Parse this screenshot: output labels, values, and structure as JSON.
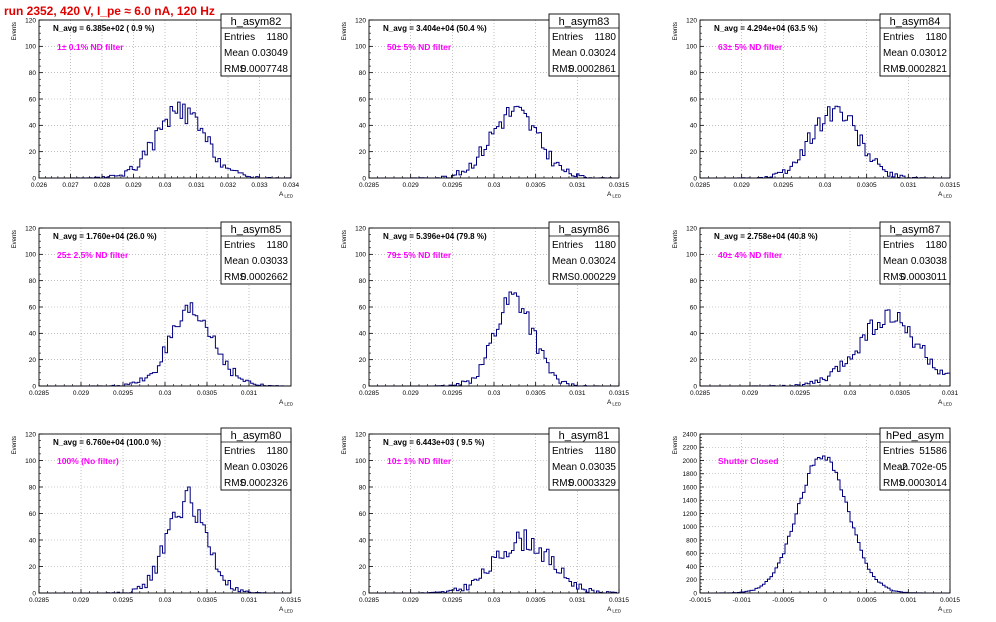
{
  "header": {
    "title": "run 2352,   420 V, I_pe ≈ 6.0 nA, 120 Hz"
  },
  "chart_data": [
    {
      "type": "histogram",
      "name": "h_asym82",
      "navg": "N_avg = 6.385e+02 ( 0.9 %)",
      "filter": "1± 0.1% ND filter",
      "stats": {
        "entries": "1180",
        "mean": "0.03049",
        "rms": "0.0007748"
      },
      "xlabel": "A_LED",
      "ylabel": "Events",
      "xlim": [
        0.026,
        0.034
      ],
      "ylim": [
        0,
        120
      ],
      "xticks": [
        "0.026",
        "0.027",
        "0.028",
        "0.029",
        "0.03",
        "0.031",
        "0.032",
        "0.033",
        "0.034"
      ],
      "yticks": [
        "0",
        "20",
        "40",
        "60",
        "80",
        "100",
        "120"
      ],
      "mu": 0.03049,
      "sigma": 0.00078,
      "peak": 50,
      "seed": 82
    },
    {
      "type": "histogram",
      "name": "h_asym83",
      "navg": "N_avg = 3.404e+04 (50.4 %)",
      "filter": "50± 5% ND filter",
      "stats": {
        "entries": "1180",
        "mean": "0.03024",
        "rms": "0.0002861"
      },
      "xlabel": "A_LED",
      "ylabel": "Events",
      "xlim": [
        0.0285,
        0.0315
      ],
      "ylim": [
        0,
        120
      ],
      "xticks": [
        "0.0285",
        "0.029",
        "0.0295",
        "0.03",
        "0.0305",
        "0.031",
        "0.0315"
      ],
      "yticks": [
        "0",
        "20",
        "40",
        "60",
        "80",
        "100",
        "120"
      ],
      "mu": 0.03024,
      "sigma": 0.00029,
      "peak": 50,
      "seed": 83
    },
    {
      "type": "histogram",
      "name": "h_asym84",
      "navg": "N_avg = 4.294e+04 (63.5 %)",
      "filter": "63± 5% ND filter",
      "stats": {
        "entries": "1180",
        "mean": "0.03012",
        "rms": "0.0002821"
      },
      "xlabel": "A_LED",
      "ylabel": "Events",
      "xlim": [
        0.0285,
        0.0315
      ],
      "ylim": [
        0,
        120
      ],
      "xticks": [
        "0.0285",
        "0.029",
        "0.0295",
        "0.03",
        "0.0305",
        "0.031",
        "0.0315"
      ],
      "yticks": [
        "0",
        "20",
        "40",
        "60",
        "80",
        "100",
        "120"
      ],
      "mu": 0.03012,
      "sigma": 0.00028,
      "peak": 52,
      "seed": 84
    },
    {
      "type": "histogram",
      "name": "h_asym85",
      "navg": "N_avg = 1.760e+04 (26.0 %)",
      "filter": "25± 2.5% ND filter",
      "stats": {
        "entries": "1180",
        "mean": "0.03033",
        "rms": "0.0002662"
      },
      "xlabel": "A_LED",
      "ylabel": "Events",
      "xlim": [
        0.0285,
        0.0315
      ],
      "ylim": [
        0,
        120
      ],
      "xticks": [
        "0.0285",
        "0.029",
        "0.0295",
        "0.03",
        "0.0305",
        "0.031"
      ],
      "yticks": [
        "0",
        "20",
        "40",
        "60",
        "80",
        "100",
        "120"
      ],
      "mu": 0.03033,
      "sigma": 0.00027,
      "peak": 54,
      "seed": 85
    },
    {
      "type": "histogram",
      "name": "h_asym86",
      "navg": "N_avg = 5.396e+04 (79.8 %)",
      "filter": "79± 5% ND filter",
      "stats": {
        "entries": "1180",
        "mean": "0.03024",
        "rms": "0.000229"
      },
      "xlabel": "A_LED",
      "ylabel": "Events",
      "xlim": [
        0.0285,
        0.0315
      ],
      "ylim": [
        0,
        120
      ],
      "xticks": [
        "0.0285",
        "0.029",
        "0.0295",
        "0.03",
        "0.0305",
        "0.031",
        "0.0315"
      ],
      "yticks": [
        "0",
        "20",
        "40",
        "60",
        "80",
        "100",
        "120"
      ],
      "mu": 0.03024,
      "sigma": 0.00023,
      "peak": 68,
      "seed": 86
    },
    {
      "type": "histogram",
      "name": "h_asym87",
      "navg": "N_avg = 2.758e+04 (40.8 %)",
      "filter": "40± 4% ND filter",
      "stats": {
        "entries": "1180",
        "mean": "0.03038",
        "rms": "0.0003011"
      },
      "xlabel": "A_LED",
      "ylabel": "Events",
      "xlim": [
        0.0285,
        0.031
      ],
      "ylim": [
        0,
        120
      ],
      "xticks": [
        "0.0285",
        "0.029",
        "0.0295",
        "0.03",
        "0.0305",
        "0.031"
      ],
      "yticks": [
        "0",
        "20",
        "40",
        "60",
        "80",
        "100",
        "120"
      ],
      "mu": 0.03038,
      "sigma": 0.0003,
      "peak": 52,
      "seed": 87
    },
    {
      "type": "histogram",
      "name": "h_asym80",
      "navg": "N_avg = 6.760e+04 (100.0 %)",
      "filter": "100% (No filter)",
      "stats": {
        "entries": "1180",
        "mean": "0.03026",
        "rms": "0.0002326"
      },
      "xlabel": "A_LED",
      "ylabel": "Events",
      "xlim": [
        0.0285,
        0.0315
      ],
      "ylim": [
        0,
        120
      ],
      "xticks": [
        "0.0285",
        "0.029",
        "0.0295",
        "0.03",
        "0.0305",
        "0.031",
        "0.0315"
      ],
      "yticks": [
        "0",
        "20",
        "40",
        "60",
        "80",
        "100",
        "120"
      ],
      "mu": 0.03026,
      "sigma": 0.00023,
      "peak": 70,
      "seed": 80
    },
    {
      "type": "histogram",
      "name": "h_asym81",
      "navg": "N_avg = 6.443e+03 ( 9.5 %)",
      "filter": "10± 1% ND filter",
      "stats": {
        "entries": "1180",
        "mean": "0.03035",
        "rms": "0.0003329"
      },
      "xlabel": "A_LED",
      "ylabel": "Events",
      "xlim": [
        0.0285,
        0.0315
      ],
      "ylim": [
        0,
        120
      ],
      "xticks": [
        "0.0285",
        "0.029",
        "0.0295",
        "0.03",
        "0.0305",
        "0.031",
        "0.0315"
      ],
      "yticks": [
        "0",
        "20",
        "40",
        "60",
        "80",
        "100",
        "120"
      ],
      "mu": 0.03035,
      "sigma": 0.00033,
      "peak": 40,
      "seed": 81
    },
    {
      "type": "histogram",
      "name": "hPed_asym",
      "navg": "",
      "filter": "Shutter Closed",
      "stats": {
        "entries": "51586",
        "mean": "-2.702e-05",
        "rms": "0.0003014"
      },
      "xlabel": "A_LED",
      "ylabel": "Events",
      "xlim": [
        -0.0015,
        0.0015
      ],
      "ylim": [
        0,
        2400
      ],
      "xticks": [
        "-0.0015",
        "-0.001",
        "-0.0005",
        "0",
        "0.0005",
        "0.001",
        "0.0015"
      ],
      "yticks": [
        "0",
        "200",
        "400",
        "600",
        "800",
        "1000",
        "1200",
        "1400",
        "1600",
        "1800",
        "2000",
        "2200",
        "2400"
      ],
      "mu": -2.7e-05,
      "sigma": 0.0003,
      "peak": 2080,
      "seed": 99
    }
  ],
  "colors": {
    "histogram": "#000080",
    "filter_label": "#ff00ff",
    "title": "#e00000",
    "grid": "#9a9a9a"
  }
}
